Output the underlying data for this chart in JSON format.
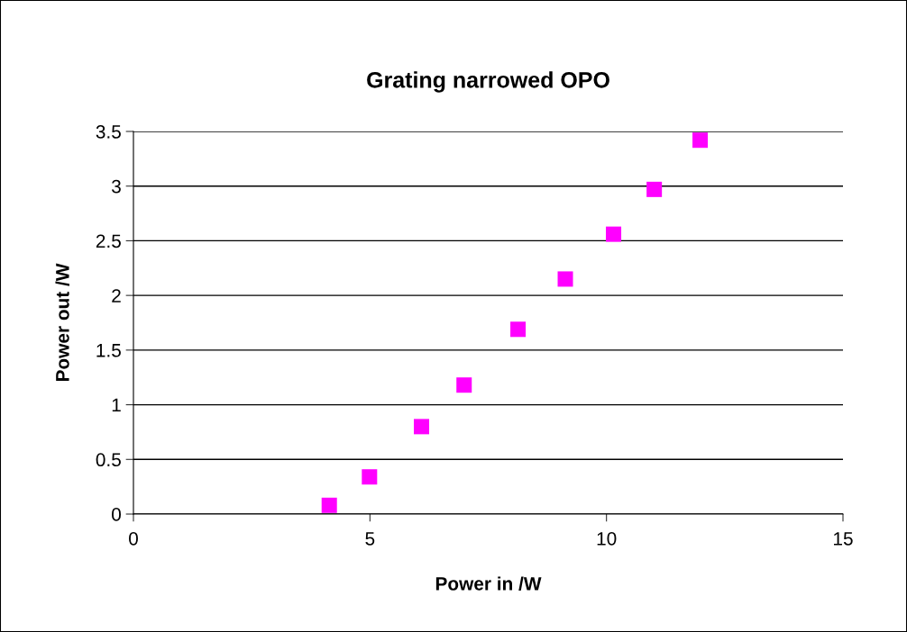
{
  "chart_data": {
    "type": "scatter",
    "title": "Grating narrowed OPO",
    "xlabel": "Power in /W",
    "ylabel": "Power out /W",
    "x": [
      4.14,
      4.99,
      6.09,
      6.99,
      8.13,
      9.13,
      10.15,
      11.01,
      11.98
    ],
    "values": [
      0.08,
      0.34,
      0.8,
      1.18,
      1.69,
      2.15,
      2.56,
      2.97,
      3.42
    ],
    "color": "#ff00ff",
    "marker": "square",
    "xlim": [
      0,
      15
    ],
    "xticks": [
      0,
      5,
      10,
      15
    ],
    "ylim": [
      0,
      3.5
    ],
    "yticks": [
      0,
      0.5,
      1,
      1.5,
      2,
      2.5,
      3,
      3.5
    ],
    "grid": "y"
  }
}
